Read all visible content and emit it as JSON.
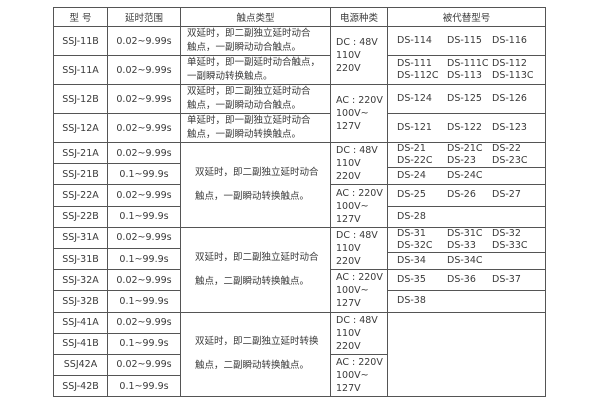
{
  "headers": [
    "型 号",
    "延时范围",
    "触点类型",
    "电源种类",
    "被代替型号"
  ],
  "power": {
    "dc": [
      "DC : 48V",
      "110V",
      "220V"
    ],
    "ac": [
      "AC : 220V",
      "100V~",
      "127V"
    ]
  },
  "group1": {
    "rows": [
      {
        "model": "SSJ-11B",
        "delay": "0.02~9.99s",
        "contact": [
          "双延时，即二副独立延时动合",
          "触点，一副瞬动动合触点。"
        ],
        "replaced": [
          "DS-114",
          "DS-115",
          "DS-116"
        ]
      },
      {
        "model": "SSJ-11A",
        "delay": "0.02~9.99s",
        "contact": [
          "单延时，即一副延时动合触点，",
          "一副瞬动转换触点。"
        ],
        "replaced": [
          "DS-111",
          "DS-111C",
          "DS-112",
          "DS-112C",
          "DS-113",
          "DS-113C"
        ]
      },
      {
        "model": "SSJ-12B",
        "delay": "0.02~9.99s",
        "contact": [
          "双延时，即二副独立延时动合",
          "触点，一副瞬动动合触点。"
        ],
        "replaced": [
          "DS-124",
          "DS-125",
          "DS-126"
        ]
      },
      {
        "model": "SSJ-12A",
        "delay": "0.02~9.99s",
        "contact": [
          "单延时，即一副独立延时动合",
          "触点，一副瞬动转换触点。"
        ],
        "replaced": [
          "DS-121",
          "DS-122",
          "DS-123"
        ]
      }
    ]
  },
  "group2": {
    "contact": [
      "双延时，即二副独立延时动合",
      "触点，一副瞬动转换触点。"
    ],
    "rows": [
      {
        "model": "SSJ-21A",
        "delay": "0.02~9.99s"
      },
      {
        "model": "SSJ-21B",
        "delay": "0.1~99.9s"
      },
      {
        "model": "SSJ-22A",
        "delay": "0.02~9.99s"
      },
      {
        "model": "SSJ-22B",
        "delay": "0.1~99.9s"
      }
    ],
    "replaced_dc": [
      [
        "DS-21",
        "DS-21C",
        "DS-22",
        "DS-22C",
        "DS-23",
        "DS-23C"
      ],
      [
        "DS-24",
        "DS-24C"
      ]
    ],
    "replaced_ac": [
      [
        "DS-25",
        "DS-26",
        "DS-27"
      ],
      [
        "DS-28"
      ]
    ]
  },
  "group3": {
    "contact": [
      "双延时，即二副独立延时动合",
      "触点，二副瞬动转换触点。"
    ],
    "rows": [
      {
        "model": "SSJ-31A",
        "delay": "0.02~9.99s"
      },
      {
        "model": "SSJ-31B",
        "delay": "0.1~99.9s"
      },
      {
        "model": "SSJ-32A",
        "delay": "0.02~9.99s"
      },
      {
        "model": "SSJ-32B",
        "delay": "0.1~99.9s"
      }
    ],
    "replaced_dc": [
      [
        "DS-31",
        "DS-31C",
        "DS-32",
        "DS-32C",
        "DS-33",
        "DS-33C"
      ],
      [
        "DS-34",
        "DS-34C"
      ]
    ],
    "replaced_ac": [
      [
        "DS-35",
        "DS-36",
        "DS-37"
      ],
      [
        "DS-38"
      ]
    ]
  },
  "group4": {
    "contact": [
      "双延时，即二副独立延时转换",
      "触点，二副瞬动转换触点。"
    ],
    "rows": [
      {
        "model": "SSJ-41A",
        "delay": "0.02~9.99s"
      },
      {
        "model": "SSJ-41B",
        "delay": "0.1~99.9s"
      },
      {
        "model": "SSJ42A",
        "delay": "0.02~9.99s"
      },
      {
        "model": "SSJ-42B",
        "delay": "0.1~99.9s"
      }
    ]
  }
}
